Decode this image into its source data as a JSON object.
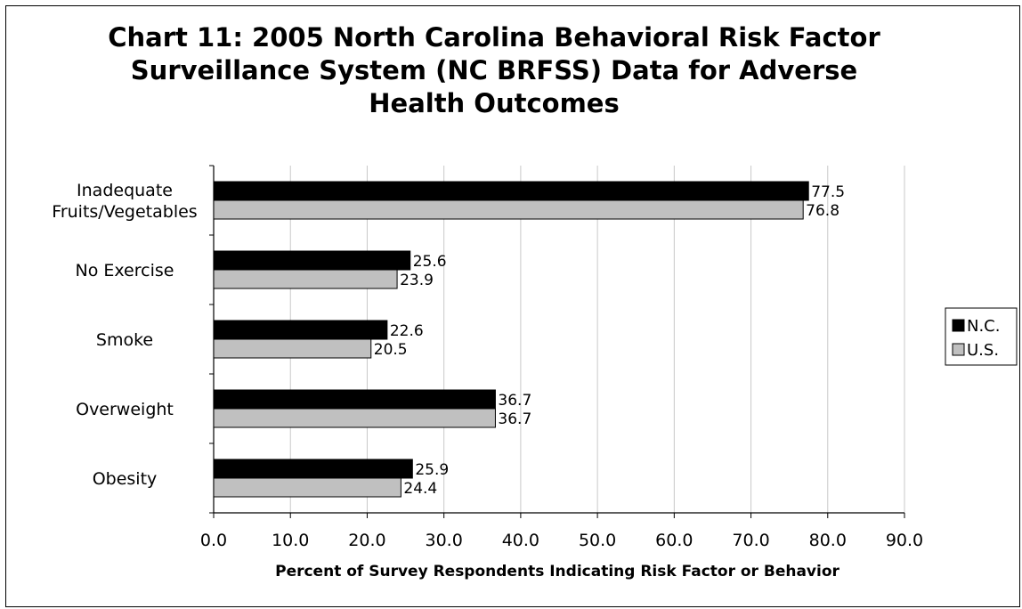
{
  "chart_data": {
    "type": "bar",
    "orientation": "horizontal",
    "title": "Chart 11: 2005 North Carolina Behavioral Risk Factor Surveillance System (NC BRFSS) Data for Adverse Health Outcomes",
    "categories": [
      [
        "Inadequate",
        "Fruits/Vegetables"
      ],
      [
        "No Exercise"
      ],
      [
        "Smoke"
      ],
      [
        "Overweight"
      ],
      [
        "Obesity"
      ]
    ],
    "series": [
      {
        "name": "N.C.",
        "color": "#000000",
        "values": [
          77.5,
          25.6,
          22.6,
          36.7,
          25.9
        ],
        "labels": [
          "77.5",
          "25.6",
          "22.6",
          "36.7",
          "25.9"
        ]
      },
      {
        "name": "U.S.",
        "color": "#c0c0c0",
        "values": [
          76.8,
          23.9,
          20.5,
          36.7,
          24.4
        ],
        "labels": [
          "76.8",
          "23.9",
          "20.5",
          "36.7",
          "24.4"
        ]
      }
    ],
    "xlabel": "Percent of Survey Respondents Indicating Risk Factor or Behavior",
    "ylabel": "",
    "xlim": [
      0,
      90
    ],
    "xticks": [
      0,
      10,
      20,
      30,
      40,
      50,
      60,
      70,
      80,
      90
    ],
    "xtick_labels": [
      "0.0",
      "10.0",
      "20.0",
      "30.0",
      "40.0",
      "50.0",
      "60.0",
      "70.0",
      "80.0",
      "90.0"
    ],
    "grid": "vertical",
    "legend_position": "right"
  }
}
